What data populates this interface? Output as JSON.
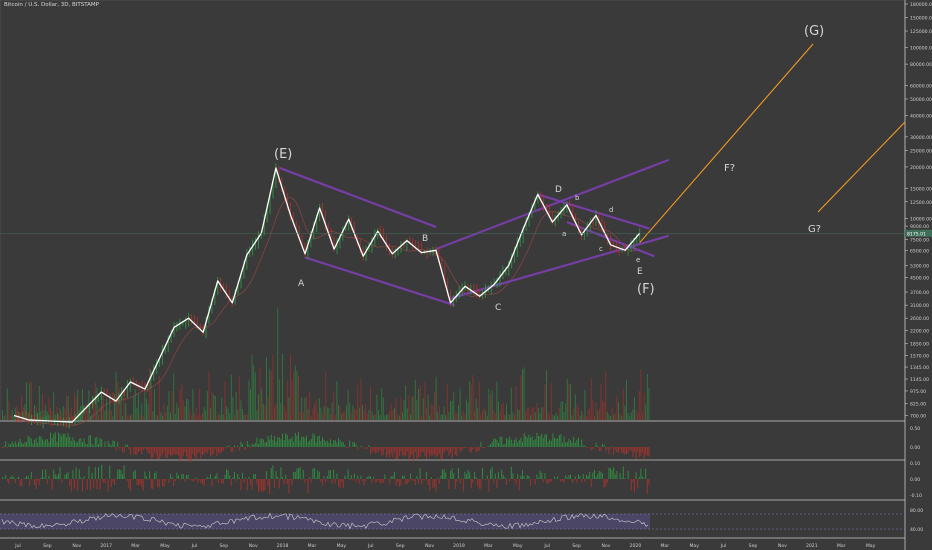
{
  "title": "Bitcoin / U.S. Dollar, 3D, BITSTAMP",
  "colors": {
    "background": "#3a3a3a",
    "price_line": "#ffffff",
    "channel": "#7b3fb0",
    "projection": "#f59a23",
    "up": "#2e9e45",
    "down": "#b8322c",
    "label": "#d6d6d6",
    "axis_text": "#cfcfcf",
    "current_price_tag": "#3f6f5a",
    "rsi_band": "#5a4f8a"
  },
  "chart_data": [
    {
      "type": "line",
      "name": "price",
      "y_scale": "log",
      "x_ticks": [
        "Jul",
        "Sep",
        "Nov",
        "2017",
        "Mar",
        "May",
        "Jul",
        "Sep",
        "Nov",
        "2018",
        "Mar",
        "May",
        "Jul",
        "Sep",
        "Nov",
        "2019",
        "Mar",
        "May",
        "Jul",
        "Sep",
        "Nov",
        "2020",
        "Mar",
        "May",
        "Jul",
        "Sep",
        "Nov",
        "2021",
        "Mar",
        "May"
      ],
      "y_ticks": [
        "180000.00",
        "150000.00",
        "125000.00",
        "100000.00",
        "80000.00",
        "60000.00",
        "50000.00",
        "40000.00",
        "30000.00",
        "25000.00",
        "20000.00",
        "15000.00",
        "12500.00",
        "10000.00",
        "9000.00",
        "7500.00",
        "6500.00",
        "5300.00",
        "4500.00",
        "3700.00",
        "3100.00",
        "2600.00",
        "2200.00",
        "1850.00",
        "1570.00",
        "1345.00",
        "1145.00",
        "975.00",
        "825.00",
        "700.00"
      ],
      "current_price_label": "8175.01",
      "points": [
        {
          "date": "2016-06",
          "price": 700
        },
        {
          "date": "2016-07",
          "price": 660
        },
        {
          "date": "2016-10",
          "price": 640
        },
        {
          "date": "2016-12",
          "price": 960
        },
        {
          "date": "2017-01",
          "price": 850
        },
        {
          "date": "2017-02",
          "price": 1100
        },
        {
          "date": "2017-03",
          "price": 1000
        },
        {
          "date": "2017-05",
          "price": 2300
        },
        {
          "date": "2017-06",
          "price": 2600
        },
        {
          "date": "2017-07",
          "price": 2150
        },
        {
          "date": "2017-08",
          "price": 4300
        },
        {
          "date": "2017-09",
          "price": 3200
        },
        {
          "date": "2017-10",
          "price": 6100
        },
        {
          "date": "2017-11",
          "price": 8200
        },
        {
          "date": "2017-12",
          "price": 19700
        },
        {
          "date": "2018-01",
          "price": 10500
        },
        {
          "date": "2018-02",
          "price": 6200
        },
        {
          "date": "2018-03",
          "price": 11500
        },
        {
          "date": "2018-04",
          "price": 6600
        },
        {
          "date": "2018-05",
          "price": 9900
        },
        {
          "date": "2018-06",
          "price": 6000
        },
        {
          "date": "2018-07",
          "price": 8400
        },
        {
          "date": "2018-08",
          "price": 6200
        },
        {
          "date": "2018-09",
          "price": 7400
        },
        {
          "date": "2018-10",
          "price": 6300
        },
        {
          "date": "2018-11",
          "price": 6500
        },
        {
          "date": "2018-12",
          "price": 3200
        },
        {
          "date": "2019-01",
          "price": 4000
        },
        {
          "date": "2019-02",
          "price": 3500
        },
        {
          "date": "2019-03",
          "price": 4100
        },
        {
          "date": "2019-04",
          "price": 5300
        },
        {
          "date": "2019-05",
          "price": 8700
        },
        {
          "date": "2019-06",
          "price": 13800
        },
        {
          "date": "2019-07",
          "price": 9500
        },
        {
          "date": "2019-08",
          "price": 12000
        },
        {
          "date": "2019-09",
          "price": 8000
        },
        {
          "date": "2019-10",
          "price": 10400
        },
        {
          "date": "2019-11",
          "price": 7000
        },
        {
          "date": "2019-12",
          "price": 6500
        },
        {
          "date": "2020-01",
          "price": 8175
        }
      ]
    },
    {
      "type": "bar",
      "name": "volume",
      "note_values": "relative volume bars under the price panel"
    },
    {
      "type": "bar",
      "name": "oscillator-1",
      "y_ticks": [
        "0.50",
        "0.00"
      ]
    },
    {
      "type": "bar",
      "name": "oscillator-2",
      "y_ticks": [
        "0.10",
        "0.00",
        "-0.10"
      ]
    },
    {
      "type": "line",
      "name": "rsi",
      "y_ticks": [
        "80.00",
        "40.00"
      ]
    }
  ],
  "annotations": {
    "wave_E_big": "(E)",
    "wave_F_big": "(F)",
    "wave_G_big": "(G)",
    "wave_A": "A",
    "wave_B": "B",
    "wave_C": "C",
    "wave_D": "D",
    "wave_E": "E",
    "wave_a": "a",
    "wave_b": "b",
    "wave_c": "c",
    "wave_d": "d",
    "wave_e": "e",
    "label_F_q": "F?",
    "label_G_q": "G?"
  }
}
